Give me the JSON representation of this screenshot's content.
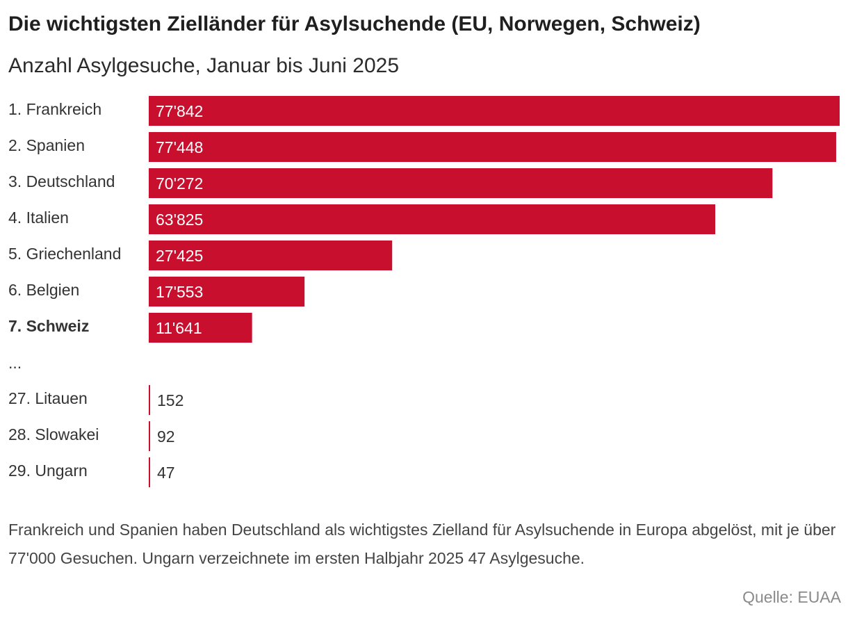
{
  "title": "Die wichtigsten Zielländer für Asylsuchende (EU, Norwegen, Schweiz)",
  "subtitle": "Anzahl Asylgesuche, Januar bis Juni 2025",
  "footnote": "Frankreich und Spanien haben Deutschland als wichtigstes Zielland für Asylsuchende in Europa abgelöst, mit je über 77'000 Gesuchen. Ungarn verzeichnete im ersten Halbjahr 2025 47 Asylgesuche.",
  "source": "Quelle: EUAA",
  "colors": {
    "bar": "#c8102e",
    "label": "#333333",
    "value_inside": "#ffffff",
    "value_outside": "#333333"
  },
  "chart_data": {
    "type": "bar",
    "orientation": "horizontal",
    "title": "Die wichtigsten Zielländer für Asylsuchende (EU, Norwegen, Schweiz)",
    "subtitle": "Anzahl Asylgesuche, Januar bis Juni 2025",
    "xlim": [
      0,
      77842
    ],
    "separator_label": "...",
    "separator_after_index": 6,
    "highlight_index": 6,
    "categories": [
      "1. Frankreich",
      "2. Spanien",
      "3. Deutschland",
      "4. Italien",
      "5. Griechenland",
      "6. Belgien",
      "7. Schweiz",
      "27. Litauen",
      "28. Slowakei",
      "29. Ungarn"
    ],
    "values": [
      77842,
      77448,
      70272,
      63825,
      27425,
      17553,
      11641,
      152,
      92,
      47
    ],
    "value_labels": [
      "77'842",
      "77'448",
      "70'272",
      "63'825",
      "27'425",
      "17'553",
      "11'641",
      "152",
      "92",
      "47"
    ]
  }
}
